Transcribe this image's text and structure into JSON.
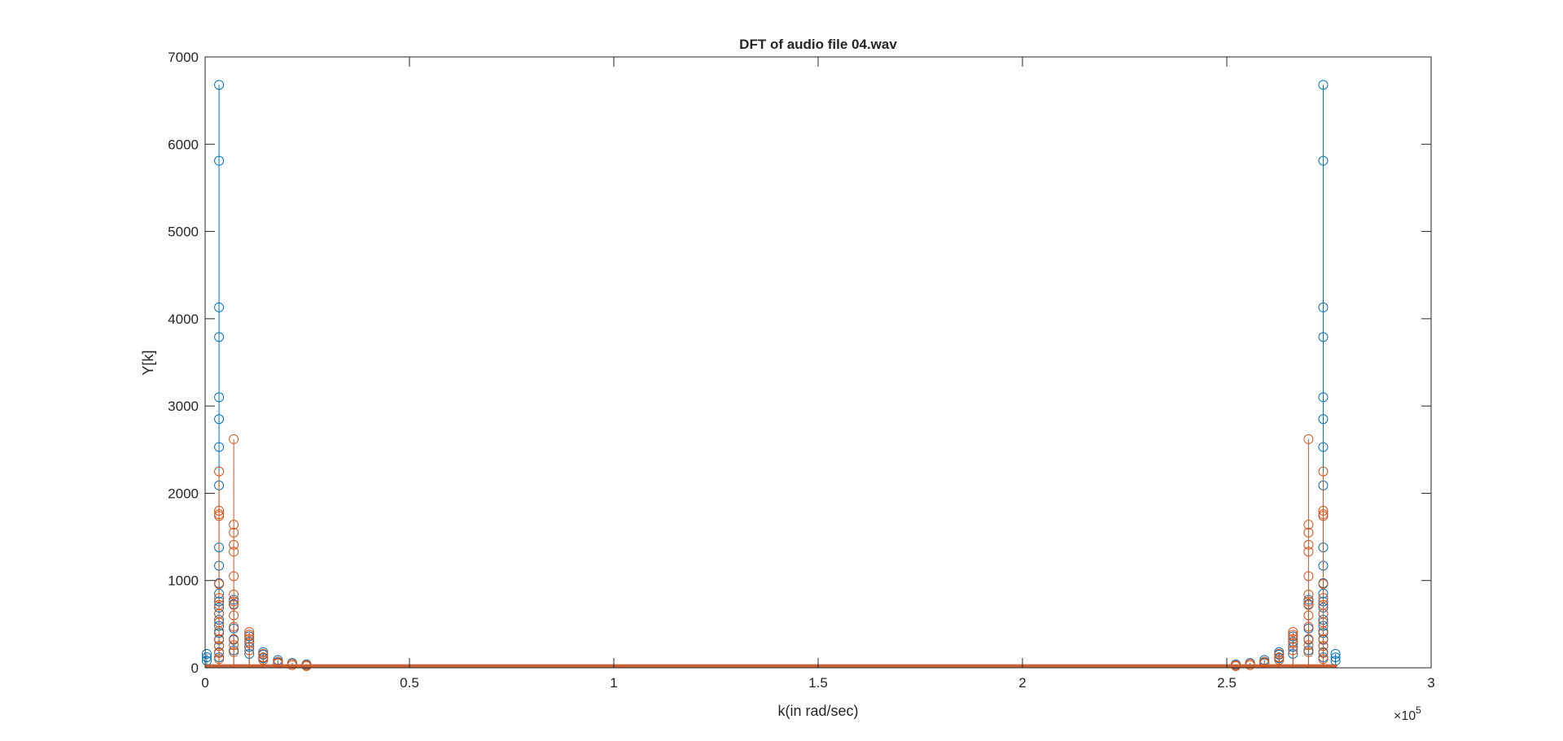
{
  "chart_data": {
    "type": "stem",
    "title": "DFT of audio file 04.wav",
    "xlabel": "k(in rad/sec)",
    "ylabel": "Y[k]",
    "xlim": [
      0,
      300000
    ],
    "ylim": [
      0,
      7000
    ],
    "x_ticks": [
      0,
      50000,
      100000,
      150000,
      200000,
      250000,
      300000
    ],
    "x_tick_labels": [
      "0",
      "0.5",
      "1",
      "1.5",
      "2",
      "2.5",
      "3"
    ],
    "x_exponent_label": "×10",
    "x_exponent_power": "5",
    "y_ticks": [
      0,
      1000,
      2000,
      3000,
      4000,
      5000,
      6000,
      7000
    ],
    "y_tick_labels": [
      "0",
      "1000",
      "2000",
      "3000",
      "4000",
      "5000",
      "6000",
      "7000"
    ],
    "grid": false,
    "legend": "none",
    "x_data_max": 277000,
    "series": [
      {
        "color": "#0072BD",
        "points": [
          {
            "x": 3400,
            "values": [
              6680,
              5810,
              4130,
              3790,
              3100,
              2850,
              2530,
              2090,
              1380,
              1170,
              970,
              850,
              760,
              690,
              620,
              550,
              480,
              400,
              320,
              250,
              180,
              120
            ]
          },
          {
            "x": 400,
            "values": [
              160,
              120,
              80
            ]
          },
          {
            "x": 7000,
            "values": [
              780,
              730,
              450,
              320,
              200
            ]
          },
          {
            "x": 10800,
            "values": [
              360,
              300,
              240,
              160
            ]
          },
          {
            "x": 14200,
            "values": [
              180,
              150,
              110
            ]
          },
          {
            "x": 17800,
            "values": [
              90,
              60
            ]
          },
          {
            "x": 21300,
            "values": [
              55
            ]
          },
          {
            "x": 24800,
            "values": [
              40
            ]
          },
          {
            "x": 276600,
            "values": [
              160,
              120,
              80
            ]
          },
          {
            "x": 270000,
            "values": [
              780,
              730,
              450,
              320,
              200
            ]
          },
          {
            "x": 266200,
            "values": [
              360,
              300,
              240,
              160
            ]
          },
          {
            "x": 262800,
            "values": [
              180,
              150,
              110
            ]
          },
          {
            "x": 259200,
            "values": [
              90,
              60
            ]
          },
          {
            "x": 255700,
            "values": [
              55
            ]
          },
          {
            "x": 252200,
            "values": [
              40
            ]
          },
          {
            "x": 273600,
            "values": [
              6680,
              5810,
              4130,
              3790,
              3100,
              2850,
              2530,
              2090,
              1380,
              1170,
              970,
              850,
              760,
              690,
              620,
              550,
              480,
              400,
              320,
              250,
              180,
              120
            ]
          }
        ]
      },
      {
        "color": "#D95319",
        "points": [
          {
            "x": 3400,
            "values": [
              2250,
              1800,
              1760,
              1740,
              960,
              800,
              720,
              620,
              520,
              420,
              330,
              250,
              170,
              100
            ]
          },
          {
            "x": 7000,
            "values": [
              2620,
              1640,
              1550,
              1410,
              1330,
              1050,
              840,
              760,
              720,
              600,
              470,
              330,
              260,
              180
            ]
          },
          {
            "x": 10800,
            "values": [
              410,
              380,
              330,
              280,
              200
            ]
          },
          {
            "x": 14200,
            "values": [
              160,
              120,
              90
            ]
          },
          {
            "x": 17800,
            "values": [
              70,
              50
            ]
          },
          {
            "x": 21300,
            "values": [
              45,
              30
            ]
          },
          {
            "x": 24800,
            "values": [
              30,
              20
            ]
          },
          {
            "x": 273600,
            "values": [
              2250,
              1800,
              1760,
              1740,
              960,
              800,
              720,
              620,
              520,
              420,
              330,
              250,
              170,
              100
            ]
          },
          {
            "x": 270000,
            "values": [
              2620,
              1640,
              1550,
              1410,
              1330,
              1050,
              840,
              760,
              720,
              600,
              470,
              330,
              260,
              180
            ]
          },
          {
            "x": 266200,
            "values": [
              410,
              380,
              330,
              280,
              200
            ]
          },
          {
            "x": 262800,
            "values": [
              160,
              120,
              90
            ]
          },
          {
            "x": 259200,
            "values": [
              70,
              50
            ]
          },
          {
            "x": 255700,
            "values": [
              45,
              30
            ]
          },
          {
            "x": 252200,
            "values": [
              30,
              20
            ]
          }
        ]
      }
    ]
  }
}
